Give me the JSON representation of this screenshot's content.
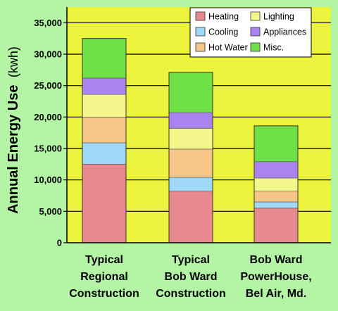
{
  "colors": {
    "page_background": "#b3f5a4",
    "plot_background": "#ecf33c",
    "gridline": "#000000"
  },
  "chart_data": {
    "type": "bar",
    "stacked": true,
    "title": "",
    "ylabel_main": "Annual Energy Use",
    "ylabel_unit": "(kwh)",
    "xlabel": "",
    "ylim": [
      0,
      37500
    ],
    "yticks": [
      0,
      5000,
      10000,
      15000,
      20000,
      25000,
      30000,
      35000
    ],
    "ytick_labels": [
      "0",
      "5,000",
      "10,000",
      "15,000",
      "20,000",
      "25,000",
      "30,000",
      "35,000"
    ],
    "grid": true,
    "legend_position": "top-right",
    "categories": [
      [
        "Typical",
        "Regional",
        "Construction"
      ],
      [
        "Typical",
        "Bob Ward",
        "Construction"
      ],
      [
        "Bob Ward",
        "PowerHouse,",
        "Bel Air, Md."
      ]
    ],
    "series": [
      {
        "name": "Heating",
        "color": "#e8888f",
        "values": [
          12500,
          8200,
          5500
        ]
      },
      {
        "name": "Cooling",
        "color": "#9fd8f7",
        "values": [
          3400,
          2200,
          1000
        ]
      },
      {
        "name": "Hot Water",
        "color": "#f5c688",
        "values": [
          4100,
          4500,
          1700
        ]
      },
      {
        "name": "Lighting",
        "color": "#f3f68a",
        "values": [
          3600,
          3300,
          2100
        ]
      },
      {
        "name": "Appliances",
        "color": "#a984f0",
        "values": [
          2600,
          2500,
          2600
        ]
      },
      {
        "name": "Misc.",
        "color": "#6fe048",
        "values": [
          6300,
          6400,
          5700
        ]
      }
    ]
  }
}
